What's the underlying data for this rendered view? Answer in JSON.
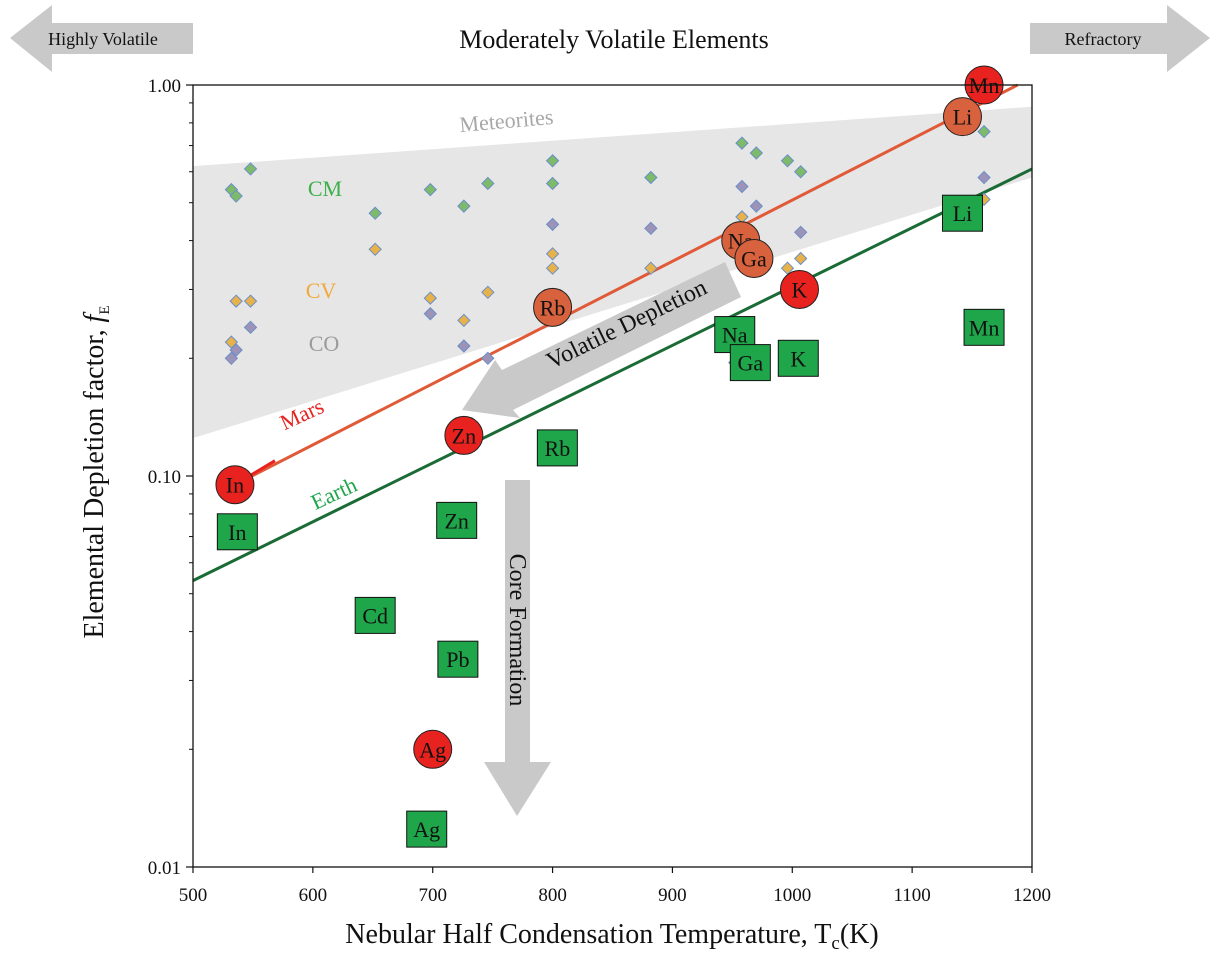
{
  "chart_data": {
    "type": "scatter",
    "title": "Moderately Volatile Elements",
    "xlabel": "Nebular Half Condensation Temperature, T",
    "xlabel_sub": "c",
    "xlabel_unit": "(K)",
    "ylabel": "Elemental Depletion factor, ",
    "ylabel_italic": "f",
    "ylabel_sub": "E",
    "xlim": [
      500,
      1200
    ],
    "ylim": [
      0.01,
      1.0
    ],
    "yscale": "log",
    "x_ticks": [
      "500",
      "600",
      "700",
      "800",
      "900",
      "1000",
      "1100",
      "1200"
    ],
    "y_ticks": [
      "0.01",
      "0.10",
      "1.00"
    ],
    "grid": false,
    "colors": {
      "mars": "#e8231f",
      "mars_line": "#e05a37",
      "mars_light": "#d9623e",
      "earth": "#1fa64b",
      "earth_line": "#1a6b35",
      "cm": "#7dba6a",
      "cv": "#e8b24a",
      "co": "#9d93b8",
      "meteorite_band": "#e6e6e6",
      "arrow": "#c9c9c9"
    },
    "annotations": {
      "left_arrow": "Highly Volatile",
      "right_arrow": "Refractory",
      "meteorites": "Meteorites",
      "cm": "CM",
      "cv": "CV",
      "co": "CO",
      "mars": "Mars",
      "earth": "Earth",
      "volatile_depletion": "Volatile Depletion",
      "core_formation": "Core Formation"
    },
    "lines": {
      "mars": [
        [
          535,
          0.095
        ],
        [
          1188,
          1.0
        ]
      ],
      "earth": [
        [
          500,
          0.054
        ],
        [
          1200,
          0.61
        ]
      ]
    },
    "meteorite_band": [
      [
        500,
        0.62
      ],
      [
        1200,
        0.88
      ],
      [
        1200,
        0.58
      ],
      [
        500,
        0.125
      ]
    ],
    "series": [
      {
        "name": "CM",
        "marker": "diamond",
        "points": [
          [
            532,
            0.54
          ],
          [
            536,
            0.52
          ],
          [
            548,
            0.61
          ],
          [
            652,
            0.47
          ],
          [
            698,
            0.54
          ],
          [
            726,
            0.49
          ],
          [
            746,
            0.56
          ],
          [
            800,
            0.64
          ],
          [
            800,
            0.56
          ],
          [
            882,
            0.58
          ],
          [
            958,
            0.71
          ],
          [
            970,
            0.67
          ],
          [
            996,
            0.64
          ],
          [
            1007,
            0.6
          ],
          [
            1160,
            0.76
          ]
        ]
      },
      {
        "name": "CV",
        "marker": "diamond",
        "points": [
          [
            532,
            0.22
          ],
          [
            536,
            0.28
          ],
          [
            548,
            0.28
          ],
          [
            652,
            0.38
          ],
          [
            698,
            0.285
          ],
          [
            726,
            0.25
          ],
          [
            746,
            0.295
          ],
          [
            800,
            0.37
          ],
          [
            800,
            0.34
          ],
          [
            882,
            0.34
          ],
          [
            958,
            0.46
          ],
          [
            996,
            0.34
          ],
          [
            1007,
            0.36
          ],
          [
            1160,
            0.51
          ]
        ]
      },
      {
        "name": "CO",
        "marker": "diamond",
        "points": [
          [
            532,
            0.2
          ],
          [
            536,
            0.21
          ],
          [
            548,
            0.24
          ],
          [
            698,
            0.26
          ],
          [
            726,
            0.215
          ],
          [
            746,
            0.2
          ],
          [
            800,
            0.44
          ],
          [
            882,
            0.43
          ],
          [
            958,
            0.55
          ],
          [
            970,
            0.49
          ],
          [
            1007,
            0.42
          ],
          [
            1160,
            0.58
          ],
          [
            952,
            0.195
          ]
        ]
      }
    ],
    "mars_points": [
      {
        "label": "Mn",
        "x": 1160,
        "y": 1.0,
        "tone": "red"
      },
      {
        "label": "Li",
        "x": 1142,
        "y": 0.83,
        "tone": "orange"
      },
      {
        "label": "Na",
        "x": 957,
        "y": 0.4,
        "tone": "orange"
      },
      {
        "label": "Ga",
        "x": 968,
        "y": 0.36,
        "tone": "orange"
      },
      {
        "label": "K",
        "x": 1006,
        "y": 0.3,
        "tone": "red"
      },
      {
        "label": "Rb",
        "x": 800,
        "y": 0.27,
        "tone": "orange"
      },
      {
        "label": "Zn",
        "x": 726,
        "y": 0.127,
        "tone": "red"
      },
      {
        "label": "In",
        "x": 535,
        "y": 0.095,
        "tone": "red"
      },
      {
        "label": "Ag",
        "x": 700,
        "y": 0.02,
        "tone": "red"
      }
    ],
    "earth_points": [
      {
        "label": "Li",
        "x": 1142,
        "y": 0.47
      },
      {
        "label": "Mn",
        "x": 1160,
        "y": 0.24
      },
      {
        "label": "Na",
        "x": 952,
        "y": 0.23
      },
      {
        "label": "Ga",
        "x": 965,
        "y": 0.195
      },
      {
        "label": "K",
        "x": 1005,
        "y": 0.2
      },
      {
        "label": "Rb",
        "x": 804,
        "y": 0.118
      },
      {
        "label": "In",
        "x": 537,
        "y": 0.072
      },
      {
        "label": "Zn",
        "x": 720,
        "y": 0.077
      },
      {
        "label": "Cd",
        "x": 652,
        "y": 0.044
      },
      {
        "label": "Pb",
        "x": 721,
        "y": 0.034
      },
      {
        "label": "Ag",
        "x": 695,
        "y": 0.0125
      }
    ]
  }
}
